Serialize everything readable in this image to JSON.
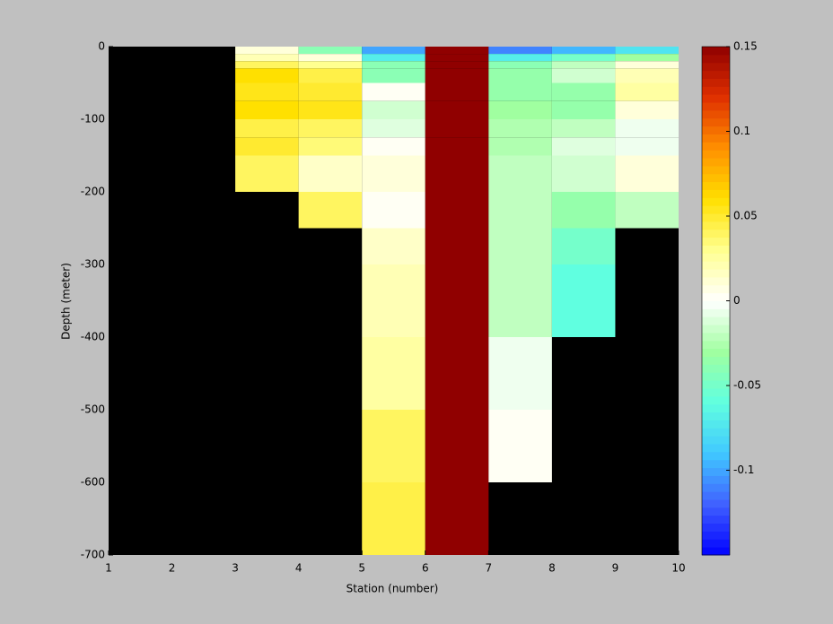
{
  "chart_data": {
    "type": "heatmap",
    "xlabel": "Station (number)",
    "ylabel": "Depth (meter)",
    "x_edges": [
      1,
      2,
      3,
      4,
      5,
      6,
      7,
      8,
      9,
      10
    ],
    "y_edges": [
      0,
      -10,
      -20,
      -30,
      -50,
      -75,
      -100,
      -125,
      -150,
      -200,
      -250,
      -300,
      -400,
      -500,
      -600,
      -700
    ],
    "values": [
      [
        null,
        null,
        0.01,
        -0.04,
        -0.1,
        0.15,
        -0.11,
        -0.095,
        -0.075
      ],
      [
        null,
        null,
        0.02,
        0.01,
        -0.07,
        0.15,
        -0.07,
        -0.05,
        -0.03
      ],
      [
        null,
        null,
        0.04,
        0.03,
        -0.04,
        0.15,
        -0.04,
        -0.02,
        0.01
      ],
      [
        null,
        null,
        0.06,
        0.045,
        -0.04,
        0.15,
        -0.035,
        -0.015,
        0.02
      ],
      [
        null,
        null,
        0.055,
        0.05,
        0.003,
        0.15,
        -0.035,
        -0.035,
        0.025
      ],
      [
        null,
        null,
        0.06,
        0.055,
        -0.015,
        0.15,
        -0.03,
        -0.035,
        0.01
      ],
      [
        null,
        null,
        0.045,
        0.04,
        -0.01,
        0.15,
        -0.025,
        -0.02,
        -0.005
      ],
      [
        null,
        null,
        0.05,
        0.035,
        0.003,
        0.15,
        -0.025,
        -0.01,
        -0.005
      ],
      [
        null,
        null,
        0.04,
        0.015,
        0.01,
        0.15,
        -0.02,
        -0.015,
        0.01
      ],
      [
        null,
        null,
        null,
        0.04,
        0.003,
        0.15,
        -0.02,
        -0.035,
        -0.02
      ],
      [
        null,
        null,
        null,
        null,
        0.015,
        0.15,
        -0.02,
        -0.05,
        null
      ],
      [
        null,
        null,
        null,
        null,
        0.02,
        0.15,
        -0.02,
        -0.06,
        null
      ],
      [
        null,
        null,
        null,
        null,
        0.025,
        0.15,
        -0.005,
        null,
        null
      ],
      [
        null,
        null,
        null,
        null,
        0.04,
        0.15,
        0.003,
        null,
        null
      ],
      [
        null,
        null,
        null,
        null,
        0.045,
        0.15,
        null,
        null,
        null
      ]
    ],
    "xlim": [
      1,
      10
    ],
    "xticks": [
      1,
      2,
      3,
      4,
      5,
      6,
      7,
      8,
      9,
      10
    ],
    "ylim": [
      -700,
      0
    ],
    "yticks": [
      0,
      -100,
      -200,
      -300,
      -400,
      -500,
      -600,
      -700
    ],
    "clim": [
      -0.15,
      0.15
    ],
    "cticks": [
      0.15,
      0.1,
      0.05,
      0,
      -0.05,
      -0.1
    ],
    "colormap": [
      "#0000ff",
      "#4060ff",
      "#40c8ff",
      "#60ffe0",
      "#a0ffa0",
      "#ffffff",
      "#ffff90",
      "#ffe000",
      "#ff9000",
      "#e03000",
      "#900000"
    ],
    "missing_color": "#000000"
  }
}
